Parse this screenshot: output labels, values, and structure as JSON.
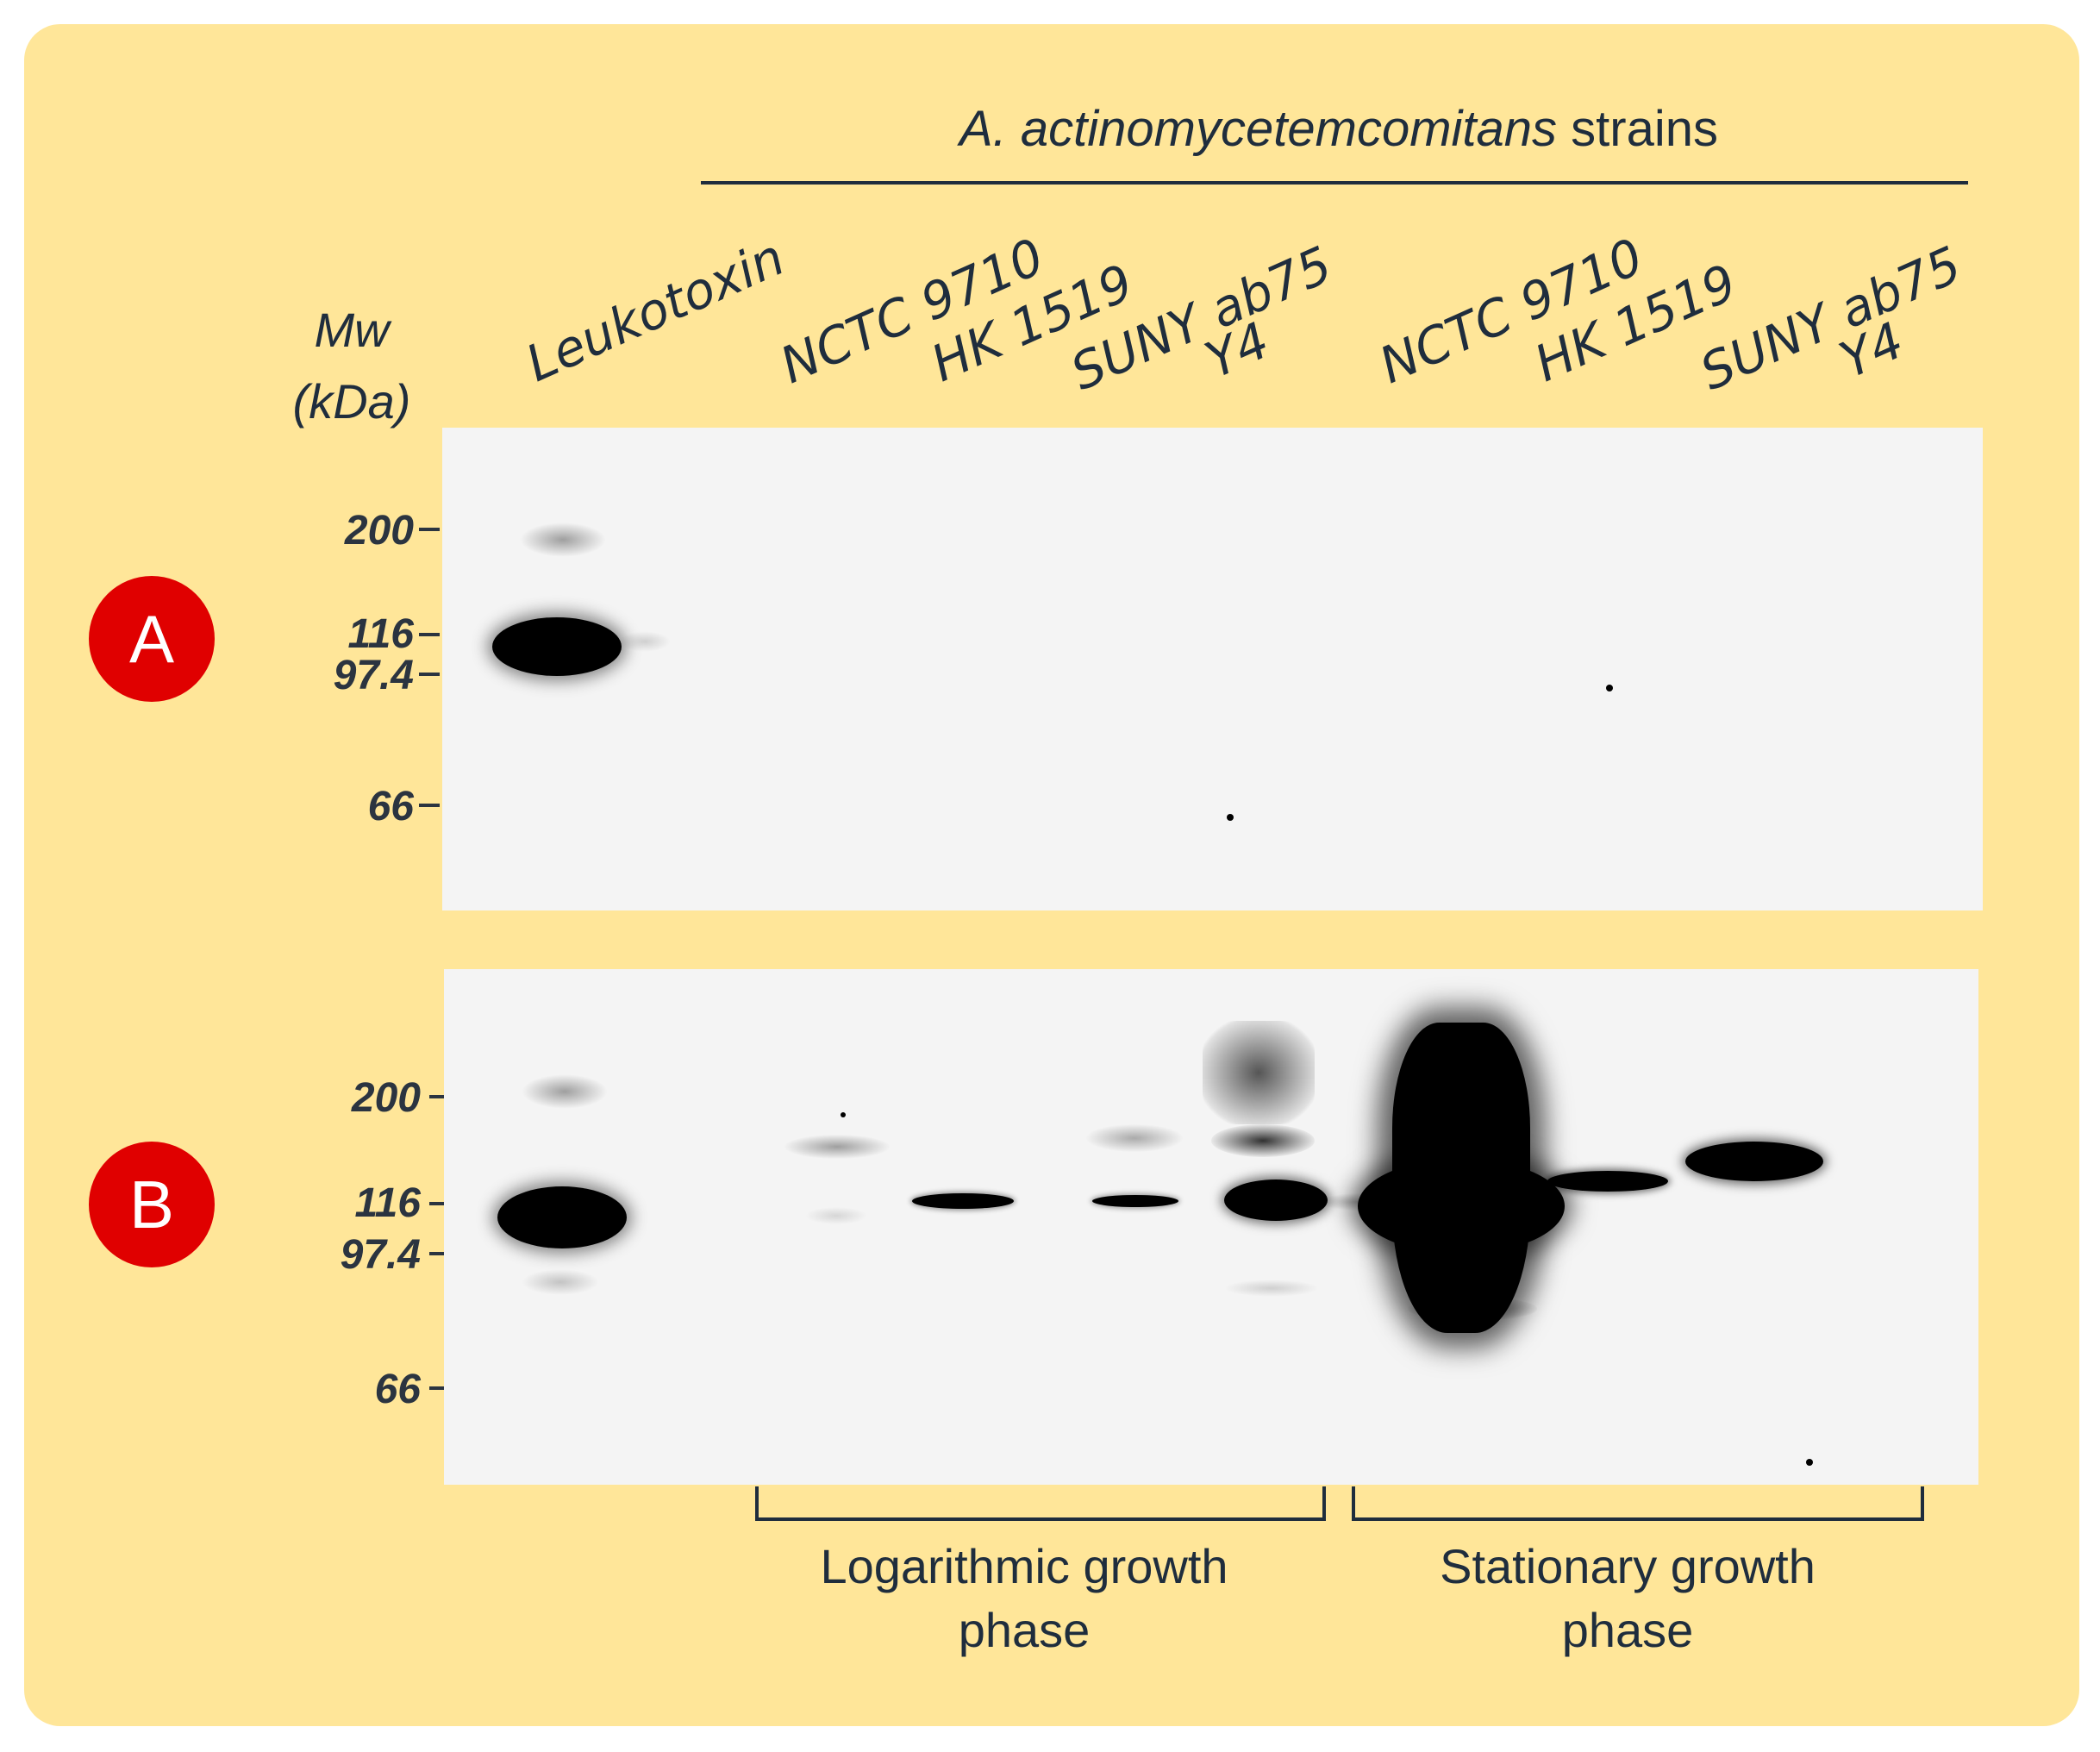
{
  "header": {
    "species": "A. actinomycetemcomitans",
    "strains_word": " strains"
  },
  "mw_axis": {
    "title_line1": "Mw",
    "title_line2": "(kDa)",
    "markers": [
      "200",
      "116",
      "97.4",
      "66"
    ]
  },
  "lanes": {
    "leukotoxin": "Leukotoxin",
    "log": [
      "NCTC 9710",
      "HK 1519",
      "SUNY ab75",
      "Y4"
    ],
    "stationary": [
      "NCTC 9710",
      "HK 1519",
      "SUNY ab75",
      "Y4"
    ]
  },
  "panels": {
    "a": {
      "label": "A"
    },
    "b": {
      "label": "B"
    }
  },
  "phases": {
    "log": "Logarithmic growth phase",
    "stationary": "Stationary growth phase"
  },
  "colors": {
    "background": "#ffe699",
    "badge": "#e00000",
    "text": "#1f2d3d"
  }
}
